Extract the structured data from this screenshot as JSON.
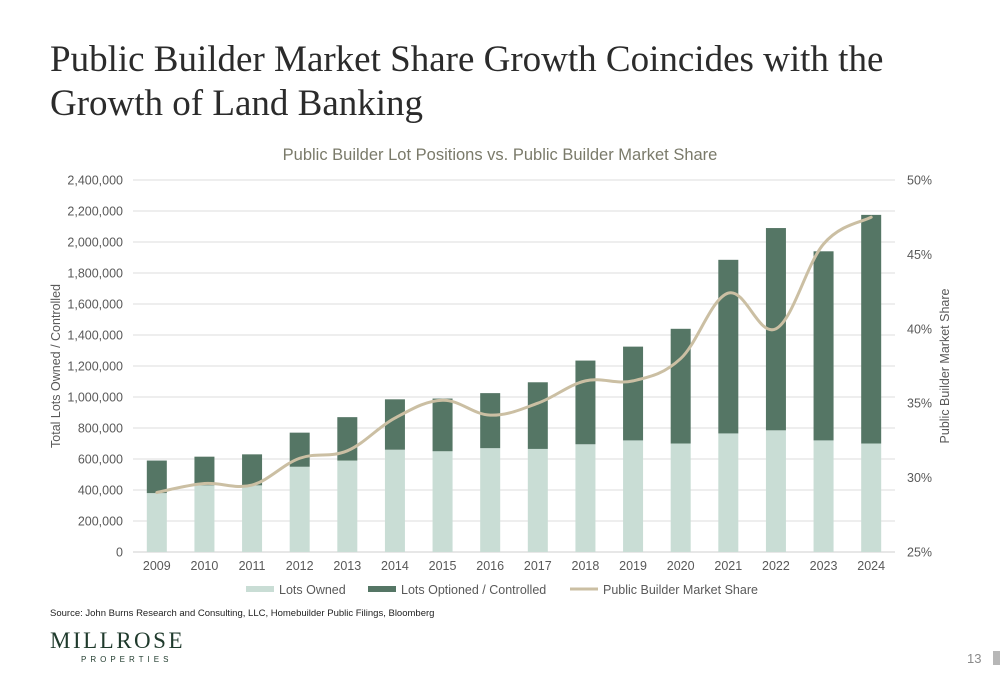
{
  "slide": {
    "title": "Public Builder Market Share Growth Coincides with the Growth of Land Banking",
    "source": "Source: John Burns Research and Consulting, LLC, Homebuilder Public Filings, Bloomberg",
    "logo_main": "MILLROSE",
    "logo_sub": "PROPERTIES",
    "page_number": "13"
  },
  "colors": {
    "lots_owned": "#c9ddd5",
    "lots_optioned": "#557665",
    "market_share": "#cbbfa3",
    "gridline": "#dedede",
    "axis_text": "#595959",
    "title_text": "#7a7a6a"
  },
  "chart_data": {
    "type": "bar",
    "title": "Public Builder Lot Positions vs. Public Builder Market Share",
    "xlabel": "",
    "ylabel": "Total Lots Owned / Controlled",
    "y2label": "Public Builder Market Share",
    "categories": [
      "2009",
      "2010",
      "2011",
      "2012",
      "2013",
      "2014",
      "2015",
      "2016",
      "2017",
      "2018",
      "2019",
      "2020",
      "2021",
      "2022",
      "2023",
      "2024"
    ],
    "ylim": [
      0,
      2400000
    ],
    "y_ticks": [
      0,
      200000,
      400000,
      600000,
      800000,
      1000000,
      1200000,
      1400000,
      1600000,
      1800000,
      2000000,
      2200000,
      2400000
    ],
    "y_tick_labels": [
      "0",
      "200,000",
      "400,000",
      "600,000",
      "800,000",
      "1,000,000",
      "1,200,000",
      "1,400,000",
      "1,600,000",
      "1,800,000",
      "2,000,000",
      "2,200,000",
      "2,400,000"
    ],
    "y2lim": [
      25,
      50
    ],
    "y2_ticks": [
      25,
      30,
      35,
      40,
      45,
      50
    ],
    "y2_tick_labels": [
      "25%",
      "30%",
      "35%",
      "40%",
      "45%",
      "50%"
    ],
    "grid": true,
    "legend_position": "bottom",
    "series": [
      {
        "name": "Lots Owned",
        "kind": "bar",
        "axis": "left",
        "values": [
          380000,
          430000,
          430000,
          550000,
          590000,
          660000,
          650000,
          670000,
          665000,
          695000,
          720000,
          700000,
          765000,
          785000,
          720000,
          700000
        ]
      },
      {
        "name": "Lots Optioned / Controlled",
        "kind": "bar",
        "axis": "left",
        "values": [
          210000,
          185000,
          200000,
          220000,
          280000,
          325000,
          340000,
          355000,
          430000,
          540000,
          605000,
          740000,
          1120000,
          1305000,
          1220000,
          1475000
        ]
      },
      {
        "name": "Public Builder Market Share",
        "kind": "line",
        "axis": "right",
        "values": [
          29.0,
          29.6,
          29.5,
          31.3,
          31.8,
          34.0,
          35.2,
          34.2,
          35.0,
          36.5,
          36.5,
          38.0,
          42.4,
          40.0,
          45.7,
          47.5
        ]
      }
    ]
  }
}
